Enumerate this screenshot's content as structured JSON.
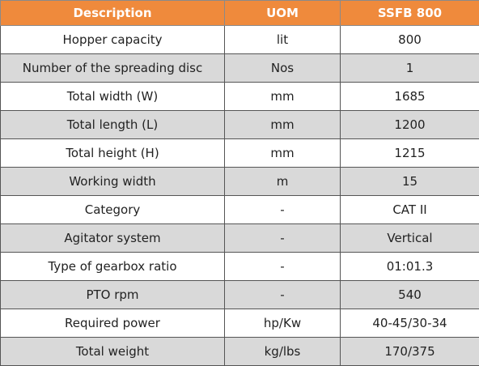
{
  "table": {
    "header": [
      "Description",
      "UOM",
      "SSFB 800"
    ],
    "rows": [
      [
        "Hopper capacity",
        "lit",
        "800"
      ],
      [
        "Number of the spreading disc",
        "Nos",
        "1"
      ],
      [
        "Total width (W)",
        "mm",
        "1685"
      ],
      [
        "Total length (L)",
        "mm",
        "1200"
      ],
      [
        "Total height (H)",
        "mm",
        "1215"
      ],
      [
        "Working width",
        "m",
        "15"
      ],
      [
        "Category",
        "-",
        "CAT II"
      ],
      [
        "Agitator system",
        "-",
        "Vertical"
      ],
      [
        "Type of gearbox ratio",
        "-",
        "01:01.3"
      ],
      [
        "PTO rpm",
        "-",
        "540"
      ],
      [
        "Required power",
        "hp/Kw",
        "40-45/30-34"
      ],
      [
        "Total weight",
        "kg/lbs",
        "170/375"
      ]
    ]
  }
}
